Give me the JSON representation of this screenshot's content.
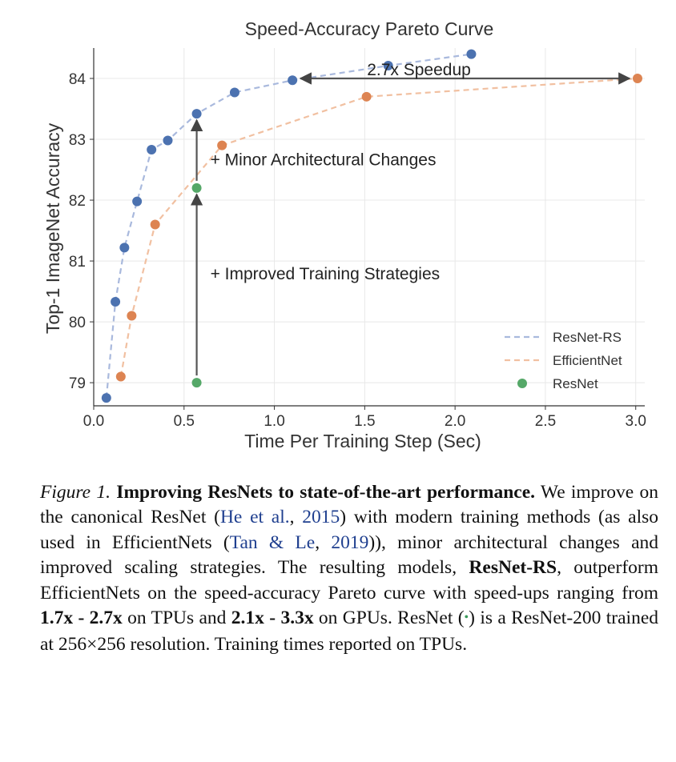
{
  "chart_data": {
    "type": "line",
    "title": "Speed-Accuracy Pareto Curve",
    "xlabel": "Time Per Training Step (Sec)",
    "ylabel": "Top-1 ImageNet Accuracy",
    "xlim": [
      0.0,
      3.05
    ],
    "ylim": [
      78.62,
      84.5
    ],
    "xticks": [
      "0.0",
      "0.5",
      "1.0",
      "1.5",
      "2.0",
      "2.5",
      "3.0"
    ],
    "yticks": [
      "79",
      "80",
      "81",
      "82",
      "83",
      "84"
    ],
    "grid": true,
    "legend_position": "lower-right",
    "series": [
      {
        "name": "ResNet-RS",
        "style": "dashed-line-markers",
        "line_color": "#a9b9dd",
        "marker_color": "#4c72b0",
        "x": [
          0.07,
          0.12,
          0.17,
          0.24,
          0.32,
          0.41,
          0.57,
          0.78,
          1.1,
          1.63,
          2.09
        ],
        "y": [
          78.75,
          80.33,
          81.22,
          81.98,
          82.83,
          82.98,
          83.42,
          83.77,
          83.97,
          84.21,
          84.4
        ]
      },
      {
        "name": "EfficientNet",
        "style": "dashed-line-markers",
        "line_color": "#f1c0a1",
        "marker_color": "#dd8452",
        "x": [
          0.15,
          0.21,
          0.34,
          0.71,
          1.51,
          3.01
        ],
        "y": [
          79.1,
          80.1,
          81.6,
          82.9,
          83.7,
          84.0
        ]
      },
      {
        "name": "ResNet",
        "style": "markers",
        "marker_color": "#55a868",
        "x": [
          0.57,
          0.57
        ],
        "y": [
          79.0,
          82.2
        ]
      }
    ],
    "annotations": [
      {
        "text": "2.7x Speedup",
        "type": "double-arrow",
        "from": [
          1.1,
          84.0
        ],
        "to": [
          3.01,
          84.0
        ]
      },
      {
        "text": "+ Minor Architectural Changes",
        "type": "arrow",
        "from": [
          0.57,
          82.2
        ],
        "to": [
          0.57,
          83.42
        ]
      },
      {
        "text": "+ Improved Training Strategies",
        "type": "arrow",
        "from": [
          0.57,
          79.0
        ],
        "to": [
          0.57,
          82.2
        ]
      }
    ]
  },
  "caption": {
    "label": "Figure 1.",
    "heading": "Improving ResNets to state-of-the-art performance.",
    "t1": "We improve on the canonical ResNet (",
    "cite1_name": "He et al.",
    "t2": ", ",
    "cite1_year": "2015",
    "t3": ") with modern training methods (as also used in EfficientNets (",
    "cite2_name": "Tan & Le",
    "t4": ", ",
    "cite2_year": "2019",
    "t5": ")), minor architectural changes and improved scaling strategies. The resulting models, ",
    "model_name": "ResNet-RS",
    "t6": ", outperform EfficientNets on the speed-accuracy Pareto curve with speed-ups ranging from ",
    "tpu_range": "1.7x - 2.7x",
    "t7": " on TPUs and ",
    "gpu_range": "2.1x - 3.3x",
    "t8": " on GPUs.  ResNet (",
    "dot_symbol": "•",
    "t9": ") is a ResNet-200 trained at 256×256 resolution.  Training times reported on TPUs."
  }
}
